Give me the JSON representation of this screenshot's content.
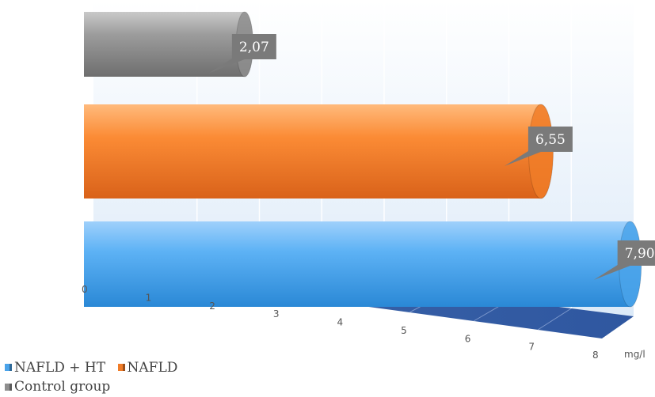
{
  "chart_data": {
    "type": "bar",
    "orientation": "horizontal",
    "categories": [
      "NAFLD + HT",
      "NAFLD",
      "Control group"
    ],
    "values": [
      7.9,
      6.55,
      2.07
    ],
    "data_labels": [
      "7,90",
      "6,55",
      "2,07"
    ],
    "xlim": [
      0,
      8
    ],
    "x_ticks": [
      "0",
      "1",
      "2",
      "3",
      "4",
      "5",
      "6",
      "7",
      "8"
    ],
    "unit": "mg/l",
    "grid": true,
    "legend_position": "bottom-left",
    "colors": [
      "#4aa3ea",
      "#f07c28",
      "#8e8e8e"
    ]
  }
}
